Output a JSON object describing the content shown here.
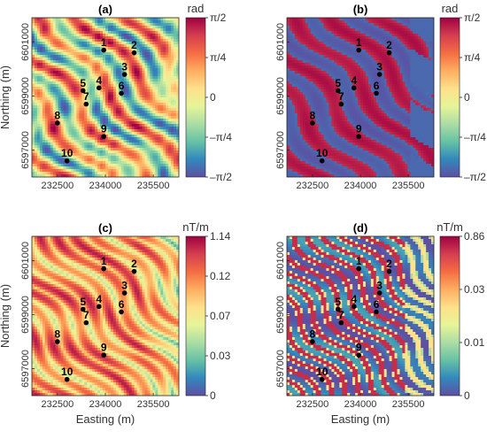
{
  "chart_data": [
    {
      "type": "heatmap",
      "panel": "(a)",
      "colorbar_unit": "rad",
      "colorbar_ticks": [
        "π/2",
        "π/4",
        "0",
        "–π/4",
        "–π/2"
      ],
      "colorbar_range": [
        -1.5708,
        1.5708
      ],
      "ylabel": "Northing (m)",
      "xlabel": "",
      "x_ticks": [
        "232500",
        "234000",
        "235500"
      ],
      "y_ticks": [
        "6601000",
        "6599000",
        "6597000"
      ],
      "points": [
        {
          "label": "1",
          "x": 233950,
          "y": 6600700
        },
        {
          "label": "2",
          "x": 234900,
          "y": 6600600
        },
        {
          "label": "3",
          "x": 234600,
          "y": 6599800
        },
        {
          "label": "4",
          "x": 233800,
          "y": 6599300
        },
        {
          "label": "5",
          "x": 233300,
          "y": 6599200
        },
        {
          "label": "6",
          "x": 234500,
          "y": 6599100
        },
        {
          "label": "7",
          "x": 233400,
          "y": 6598700
        },
        {
          "label": "8",
          "x": 232500,
          "y": 6598000
        },
        {
          "label": "9",
          "x": 233950,
          "y": 6597500
        },
        {
          "label": "10",
          "x": 232800,
          "y": 6596600
        }
      ]
    },
    {
      "type": "heatmap",
      "panel": "(b)",
      "colorbar_unit": "rad",
      "colorbar_ticks": [
        "π/2",
        "π/4",
        "0",
        "–π/4",
        "–π/2"
      ],
      "colorbar_range": [
        -1.5708,
        1.5708
      ],
      "ylabel": "",
      "xlabel": "",
      "x_ticks": [
        "232500",
        "234000",
        "235500"
      ],
      "y_ticks": [
        "6601000",
        "6599000",
        "6597000"
      ],
      "points": [
        {
          "label": "1",
          "x": 233950,
          "y": 6600700
        },
        {
          "label": "2",
          "x": 234900,
          "y": 6600600
        },
        {
          "label": "3",
          "x": 234600,
          "y": 6599800
        },
        {
          "label": "4",
          "x": 233800,
          "y": 6599300
        },
        {
          "label": "5",
          "x": 233300,
          "y": 6599200
        },
        {
          "label": "6",
          "x": 234500,
          "y": 6599100
        },
        {
          "label": "7",
          "x": 233400,
          "y": 6598700
        },
        {
          "label": "8",
          "x": 232500,
          "y": 6598000
        },
        {
          "label": "9",
          "x": 233950,
          "y": 6597500
        },
        {
          "label": "10",
          "x": 232800,
          "y": 6596600
        }
      ]
    },
    {
      "type": "heatmap",
      "panel": "(c)",
      "colorbar_unit": "nT/m",
      "colorbar_ticks": [
        "1.14",
        "0.12",
        "0.07",
        "0.03",
        "0"
      ],
      "colorbar_range": [
        0,
        1.14
      ],
      "ylabel": "Northing (m)",
      "xlabel": "Easting (m)",
      "x_ticks": [
        "232500",
        "234000",
        "235500"
      ],
      "y_ticks": [
        "6601000",
        "6599000",
        "6597000"
      ],
      "points": [
        {
          "label": "1",
          "x": 233950,
          "y": 6600700
        },
        {
          "label": "2",
          "x": 234900,
          "y": 6600600
        },
        {
          "label": "3",
          "x": 234600,
          "y": 6599800
        },
        {
          "label": "4",
          "x": 233800,
          "y": 6599300
        },
        {
          "label": "5",
          "x": 233300,
          "y": 6599200
        },
        {
          "label": "6",
          "x": 234500,
          "y": 6599100
        },
        {
          "label": "7",
          "x": 233400,
          "y": 6598700
        },
        {
          "label": "8",
          "x": 232500,
          "y": 6598000
        },
        {
          "label": "9",
          "x": 233950,
          "y": 6597500
        },
        {
          "label": "10",
          "x": 232800,
          "y": 6596600
        }
      ]
    },
    {
      "type": "heatmap",
      "panel": "(d)",
      "colorbar_unit": "nT/m",
      "colorbar_ticks": [
        "0.86",
        "0.03",
        "0.01",
        "0"
      ],
      "colorbar_range": [
        0,
        0.86
      ],
      "ylabel": "",
      "xlabel": "Easting (m)",
      "x_ticks": [
        "232500",
        "234000",
        "235500"
      ],
      "y_ticks": [
        "6601000",
        "6599000",
        "6597000"
      ],
      "points": [
        {
          "label": "1",
          "x": 233950,
          "y": 6600700
        },
        {
          "label": "2",
          "x": 234900,
          "y": 6600600
        },
        {
          "label": "3",
          "x": 234600,
          "y": 6599800
        },
        {
          "label": "4",
          "x": 233800,
          "y": 6599300
        },
        {
          "label": "5",
          "x": 233300,
          "y": 6599200
        },
        {
          "label": "6",
          "x": 234500,
          "y": 6599100
        },
        {
          "label": "7",
          "x": 233400,
          "y": 6598700
        },
        {
          "label": "8",
          "x": 232500,
          "y": 6598000
        },
        {
          "label": "9",
          "x": 233950,
          "y": 6597500
        },
        {
          "label": "10",
          "x": 232800,
          "y": 6596600
        }
      ]
    }
  ],
  "colormap": [
    "#5e4fa2",
    "#3288bd",
    "#66c2a5",
    "#abdda4",
    "#e6f598",
    "#fee08b",
    "#fdae61",
    "#f46d43",
    "#d53e4f",
    "#9e0142"
  ],
  "axis_extent": {
    "x": [
      231700,
      236300
    ],
    "y": [
      6596000,
      6601900
    ]
  }
}
